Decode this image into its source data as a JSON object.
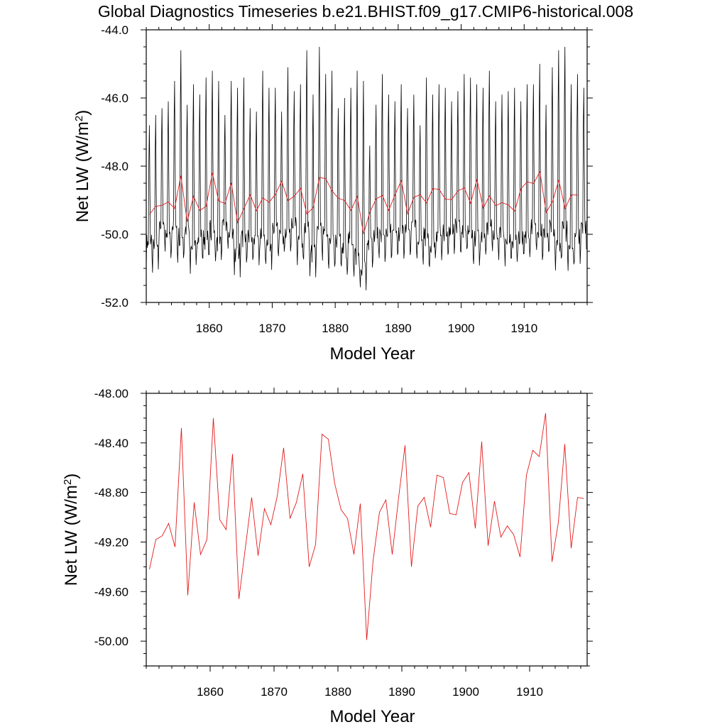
{
  "title": "Global Diagnostics Timeseries b.e21.BHIST.f09_g17.CMIP6-historical.008",
  "colors": {
    "monthly": "#000000",
    "annual": "#e41a1c",
    "axis": "#000000",
    "background": "#ffffff"
  },
  "chart_data": [
    {
      "type": "line",
      "xlabel": "Model Year",
      "ylabel_main": "Net LW (W/m",
      "ylabel_sup": "2",
      "ylabel_close": ")",
      "xlim": [
        1850,
        1920
      ],
      "ylim": [
        -52.0,
        -44.0
      ],
      "xticks": [
        1860,
        1870,
        1880,
        1890,
        1900,
        1910
      ],
      "xtick_labels": [
        "1860",
        "1870",
        "1880",
        "1890",
        "1900",
        "1910"
      ],
      "yticks": [
        -52.0,
        -50.0,
        -48.0,
        -46.0,
        -44.0
      ],
      "ytick_labels": [
        "-52.0",
        "-50.0",
        "-48.0",
        "-46.0",
        "-44.0"
      ],
      "series": [
        {
          "name": "monthly",
          "style": "seasonal",
          "x_start": 1850.0,
          "x_step": 0.0833,
          "annual_peaks": [
            -46.8,
            -46.5,
            -46.3,
            -46.1,
            -45.5,
            -44.6,
            -46.2,
            -45.6,
            -45.9,
            -45.4,
            -45.2,
            -45.5,
            -46.5,
            -45.5,
            -45.7,
            -45.4,
            -46.3,
            -46.4,
            -45.2,
            -45.7,
            -45.7,
            -46.4,
            -45.1,
            -45.8,
            -45.6,
            -44.6,
            -45.9,
            -44.5,
            -45.3,
            -45.2,
            -46.3,
            -46.0,
            -45.7,
            -45.2,
            -45.5,
            -47.4,
            -46.2,
            -45.3,
            -45.9,
            -46.1,
            -45.6,
            -46.3,
            -45.9,
            -46.8,
            -45.4,
            -45.9,
            -45.6,
            -45.7,
            -46.1,
            -45.8,
            -45.3,
            -45.4,
            -45.6,
            -45.7,
            -45.2,
            -46.1,
            -45.9,
            -45.8,
            -45.7,
            -46.1,
            -45.6,
            -45.6,
            -45.0,
            -46.2,
            -45.1,
            -44.6,
            -44.5,
            -45.6,
            -45.3,
            -45.7
          ],
          "annual_troughs": [
            -51.0,
            -51.2,
            -50.4,
            -50.9,
            -50.5,
            -50.9,
            -50.6,
            -51.2,
            -50.9,
            -51.0,
            -50.7,
            -51.1,
            -50.5,
            -50.8,
            -51.4,
            -50.9,
            -50.9,
            -51.0,
            -50.9,
            -51.2,
            -50.6,
            -50.9,
            -50.7,
            -50.5,
            -51.0,
            -50.8,
            -51.4,
            -50.8,
            -50.9,
            -51.1,
            -51.0,
            -51.3,
            -51.0,
            -51.5,
            -51.9,
            -51.0,
            -50.8,
            -51.0,
            -50.7,
            -50.8,
            -50.8,
            -50.7,
            -50.6,
            -50.9,
            -50.9,
            -51.1,
            -50.8,
            -50.8,
            -50.7,
            -50.6,
            -50.8,
            -50.7,
            -51.0,
            -50.9,
            -50.6,
            -50.8,
            -50.8,
            -51.0,
            -51.1,
            -50.9,
            -50.9,
            -50.6,
            -50.8,
            -50.7,
            -50.7,
            -51.1,
            -50.8,
            -51.2,
            -50.9,
            -50.6
          ]
        },
        {
          "name": "annual",
          "x": [
            1850.5,
            1851.5,
            1852.5,
            1853.5,
            1854.5,
            1855.5,
            1856.5,
            1857.5,
            1858.5,
            1859.5,
            1860.5,
            1861.5,
            1862.5,
            1863.5,
            1864.5,
            1865.5,
            1866.5,
            1867.5,
            1868.5,
            1869.5,
            1870.5,
            1871.5,
            1872.5,
            1873.5,
            1874.5,
            1875.5,
            1876.5,
            1877.5,
            1878.5,
            1879.5,
            1880.5,
            1881.5,
            1882.5,
            1883.5,
            1884.5,
            1885.5,
            1886.5,
            1887.5,
            1888.5,
            1889.5,
            1890.5,
            1891.5,
            1892.5,
            1893.5,
            1894.5,
            1895.5,
            1896.5,
            1897.5,
            1898.5,
            1899.5,
            1900.5,
            1901.5,
            1902.5,
            1903.5,
            1904.5,
            1905.5,
            1906.5,
            1907.5,
            1908.5,
            1909.5,
            1910.5,
            1911.5,
            1912.5,
            1913.5,
            1914.5,
            1915.5,
            1916.5,
            1917.5,
            1918.5
          ],
          "values": [
            -49.42,
            -49.18,
            -49.15,
            -49.05,
            -49.24,
            -48.28,
            -49.63,
            -48.88,
            -49.3,
            -49.18,
            -48.2,
            -49.02,
            -49.1,
            -48.49,
            -49.66,
            -49.25,
            -48.84,
            -49.31,
            -48.93,
            -49.06,
            -48.83,
            -48.44,
            -49.01,
            -48.88,
            -48.65,
            -49.4,
            -49.22,
            -48.33,
            -48.37,
            -48.73,
            -48.94,
            -49.01,
            -49.3,
            -48.89,
            -49.99,
            -49.35,
            -48.96,
            -48.86,
            -49.3,
            -48.84,
            -48.42,
            -49.4,
            -48.91,
            -48.84,
            -49.08,
            -48.66,
            -48.68,
            -48.97,
            -48.98,
            -48.72,
            -48.64,
            -49.09,
            -48.39,
            -49.23,
            -48.87,
            -49.16,
            -49.07,
            -49.14,
            -49.32,
            -48.66,
            -48.46,
            -48.51,
            -48.16,
            -49.36,
            -49.04,
            -48.41,
            -49.25,
            -48.84,
            -48.85
          ]
        }
      ]
    },
    {
      "type": "line",
      "xlabel": "Model Year",
      "ylabel_main": "Net LW (W/m",
      "ylabel_sup": "2",
      "ylabel_close": ")",
      "xlim": [
        1850,
        1919
      ],
      "ylim": [
        -50.2,
        -48.0
      ],
      "xticks": [
        1860,
        1870,
        1880,
        1890,
        1900,
        1910
      ],
      "xtick_labels": [
        "1860",
        "1870",
        "1880",
        "1890",
        "1900",
        "1910"
      ],
      "yticks": [
        -50.0,
        -49.6,
        -49.2,
        -48.8,
        -48.4,
        -48.0
      ],
      "ytick_labels": [
        "-50.00",
        "-49.60",
        "-49.20",
        "-48.80",
        "-48.40",
        "-48.00"
      ],
      "series": [
        {
          "name": "annual",
          "x": [
            1850.5,
            1851.5,
            1852.5,
            1853.5,
            1854.5,
            1855.5,
            1856.5,
            1857.5,
            1858.5,
            1859.5,
            1860.5,
            1861.5,
            1862.5,
            1863.5,
            1864.5,
            1865.5,
            1866.5,
            1867.5,
            1868.5,
            1869.5,
            1870.5,
            1871.5,
            1872.5,
            1873.5,
            1874.5,
            1875.5,
            1876.5,
            1877.5,
            1878.5,
            1879.5,
            1880.5,
            1881.5,
            1882.5,
            1883.5,
            1884.5,
            1885.5,
            1886.5,
            1887.5,
            1888.5,
            1889.5,
            1890.5,
            1891.5,
            1892.5,
            1893.5,
            1894.5,
            1895.5,
            1896.5,
            1897.5,
            1898.5,
            1899.5,
            1900.5,
            1901.5,
            1902.5,
            1903.5,
            1904.5,
            1905.5,
            1906.5,
            1907.5,
            1908.5,
            1909.5,
            1910.5,
            1911.5,
            1912.5,
            1913.5,
            1914.5,
            1915.5,
            1916.5,
            1917.5,
            1918.5
          ],
          "values": [
            -49.42,
            -49.18,
            -49.15,
            -49.05,
            -49.24,
            -48.28,
            -49.63,
            -48.88,
            -49.3,
            -49.18,
            -48.2,
            -49.02,
            -49.1,
            -48.49,
            -49.66,
            -49.25,
            -48.84,
            -49.31,
            -48.93,
            -49.06,
            -48.83,
            -48.44,
            -49.01,
            -48.88,
            -48.65,
            -49.4,
            -49.22,
            -48.33,
            -48.37,
            -48.73,
            -48.94,
            -49.01,
            -49.3,
            -48.89,
            -49.99,
            -49.35,
            -48.96,
            -48.86,
            -49.3,
            -48.84,
            -48.42,
            -49.4,
            -48.91,
            -48.84,
            -49.08,
            -48.66,
            -48.68,
            -48.97,
            -48.98,
            -48.72,
            -48.64,
            -49.09,
            -48.39,
            -49.23,
            -48.87,
            -49.16,
            -49.07,
            -49.14,
            -49.32,
            -48.66,
            -48.46,
            -48.51,
            -48.16,
            -49.36,
            -49.04,
            -48.41,
            -49.25,
            -48.84,
            -48.85
          ]
        }
      ]
    }
  ]
}
